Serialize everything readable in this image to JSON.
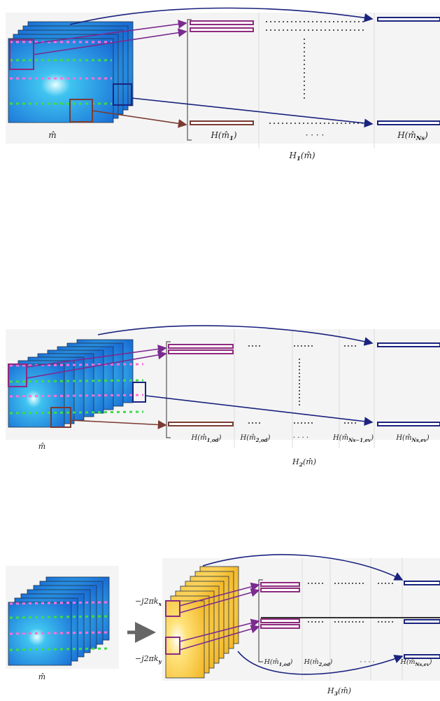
{
  "panels": [
    {
      "input": "m̂",
      "labels": [
        [
          "H(m̂",
          {
            "sub": "1"
          },
          ")"
        ],
        [
          "· · · ·"
        ],
        [
          "H(m̂",
          {
            "sub": "Ns"
          },
          ")"
        ]
      ],
      "caption": [
        "H",
        {
          "sub": "1"
        },
        "(m̂)"
      ]
    },
    {
      "input": "m̂",
      "labels": [
        [
          "H(m̂",
          {
            "sub": "1,od"
          },
          ")"
        ],
        [
          "H(m̂",
          {
            "sub": "2,od"
          },
          ")"
        ],
        [
          "· · · ·"
        ],
        [
          "H(m̂",
          {
            "sub": "Ns−1,ev"
          },
          ")"
        ],
        [
          "H(m̂",
          {
            "sub": "Ns,ev"
          },
          ")"
        ]
      ],
      "caption": [
        "H",
        {
          "sub": "2"
        },
        "(m̂)"
      ]
    },
    {
      "input": "m̂",
      "operators": [
        [
          "−j2πk",
          {
            "sub": "x"
          }
        ],
        [
          "−j2πk",
          {
            "sub": "y"
          }
        ]
      ],
      "labels": [
        [
          "H(m̂",
          {
            "sub": "1,od"
          },
          ")"
        ],
        [
          "H(m̂",
          {
            "sub": "2,od"
          },
          ")"
        ],
        [
          "· · · ·"
        ],
        [
          "H(m̂",
          {
            "sub": "Ns,ev"
          },
          ")"
        ]
      ],
      "caption": [
        "H",
        {
          "sub": "3"
        },
        "(m̂)"
      ]
    }
  ]
}
